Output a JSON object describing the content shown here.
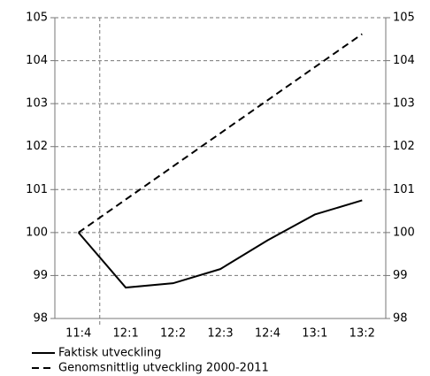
{
  "chart_data": {
    "type": "line",
    "categories": [
      "11:4",
      "12:1",
      "12:2",
      "12:3",
      "12:4",
      "13:1",
      "13:2"
    ],
    "series": [
      {
        "name": "Faktisk utveckling",
        "color": "#000000",
        "style": "solid",
        "values": [
          100,
          98.72,
          98.82,
          99.15,
          99.82,
          100.42,
          100.75
        ]
      },
      {
        "name": "Genomsnittlig utveckling 2000-2011",
        "color": "#000000",
        "style": "dashed",
        "values": [
          100,
          100.77,
          101.54,
          102.31,
          103.08,
          103.85,
          104.62
        ]
      }
    ],
    "ylim": [
      98,
      105
    ],
    "yticks": [
      98,
      99,
      100,
      101,
      102,
      103,
      104,
      105
    ],
    "y2lim": [
      98,
      105
    ],
    "y2ticks": [
      98,
      99,
      100,
      101,
      102,
      103,
      104,
      105
    ],
    "grid": true
  }
}
